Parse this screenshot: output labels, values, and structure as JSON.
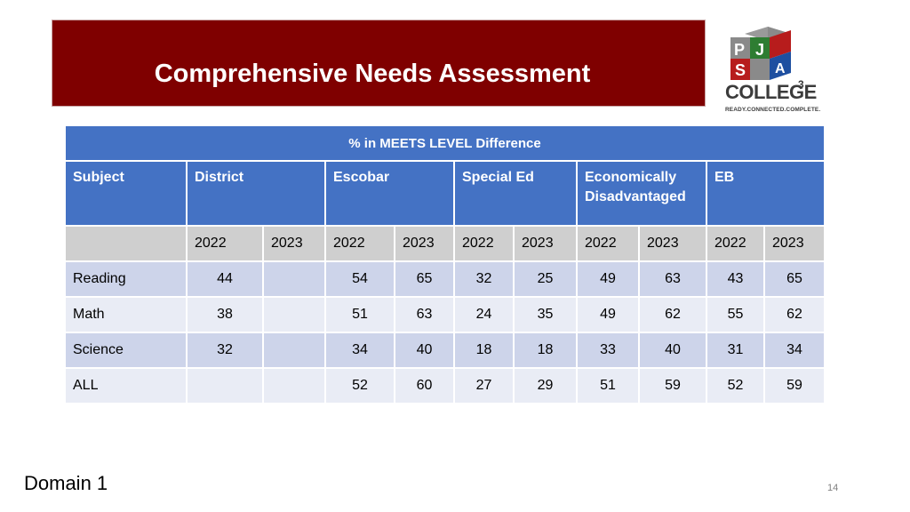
{
  "slide": {
    "title": "Comprehensive Needs Assessment",
    "footer_label": "Domain 1",
    "page_number": "14"
  },
  "logo": {
    "letters": [
      "P",
      "S",
      "J",
      "A"
    ],
    "name": "COLLEGE",
    "superscript": "3",
    "tagline": "READY.CONNECTED.COMPLETE.",
    "colors": {
      "p": "#8a8a8a",
      "s": "#b71c1c",
      "j": "#2e7d32",
      "a": "#1e4fa0"
    }
  },
  "table": {
    "caption": "% in MEETS LEVEL Difference",
    "subject_header": "Subject",
    "groups": [
      "District",
      "Escobar",
      "Special Ed",
      "Economically Disadvantaged",
      "EB"
    ],
    "years": [
      "2022",
      "2023",
      "2022",
      "2023",
      "2022",
      "2023",
      "2022",
      "2023",
      "2022",
      "2023"
    ],
    "rows": [
      {
        "subject": "Reading",
        "values": [
          "44",
          "",
          "54",
          "65",
          "32",
          "25",
          "49",
          "63",
          "43",
          "65"
        ]
      },
      {
        "subject": "Math",
        "values": [
          "38",
          "",
          "51",
          "63",
          "24",
          "35",
          "49",
          "62",
          "55",
          "62"
        ]
      },
      {
        "subject": "Science",
        "values": [
          "32",
          "",
          "34",
          "40",
          "18",
          "18",
          "33",
          "40",
          "31",
          "34"
        ]
      },
      {
        "subject": "ALL",
        "values": [
          "",
          "",
          "52",
          "60",
          "27",
          "29",
          "51",
          "59",
          "52",
          "59"
        ]
      }
    ]
  },
  "colors": {
    "title_band": "#7f0000",
    "header_blue": "#4472c4",
    "year_row": "#cfcfcf",
    "row_dark": "#cdd4ea",
    "row_light": "#e9ecf5"
  }
}
